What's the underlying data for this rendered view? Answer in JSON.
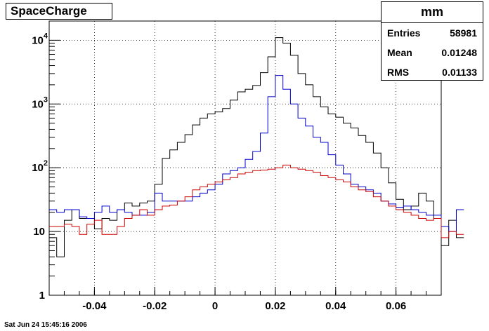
{
  "title": "SpaceCharge",
  "stats": {
    "title": "mm",
    "rows": [
      {
        "key": "Entries",
        "value": "58981"
      },
      {
        "key": "Mean",
        "value": "0.01248"
      },
      {
        "key": "RMS",
        "value": "0.01133"
      }
    ]
  },
  "timestamp": "Sat Jun 24 15:45:16 2006",
  "colors": {
    "total": "#000000",
    "blue": "#0000cc",
    "red": "#cc0000",
    "grid": "#000000"
  },
  "chart_data": {
    "type": "line",
    "xlim": [
      -0.055,
      0.075
    ],
    "ylim": [
      1,
      20000
    ],
    "log_y": true,
    "grid": true,
    "bin_width": 0.0025,
    "x_ticks": [
      -0.04,
      -0.02,
      0,
      0.02,
      0.04,
      0.06
    ],
    "x_tick_labels": [
      "-0.04",
      "-0.02",
      "0",
      "0.02",
      "0.04",
      "0.06"
    ],
    "y_ticks": [
      1,
      10,
      100,
      1000,
      10000
    ],
    "y_tick_labels": [
      {
        "base": "1",
        "exp": ""
      },
      {
        "base": "10",
        "exp": ""
      },
      {
        "base": "10",
        "exp": "2"
      },
      {
        "base": "10",
        "exp": "3"
      },
      {
        "base": "10",
        "exp": "4"
      }
    ],
    "series": [
      {
        "key": "total",
        "values": [
          8,
          4,
          15,
          22,
          16,
          16,
          11,
          16,
          15,
          22,
          28,
          25,
          28,
          30,
          55,
          140,
          190,
          250,
          330,
          470,
          600,
          700,
          750,
          850,
          1150,
          1550,
          1700,
          1950,
          3100,
          5500,
          11000,
          9000,
          5800,
          3000,
          2000,
          1300,
          900,
          700,
          620,
          500,
          420,
          320,
          250,
          170,
          100,
          58,
          32,
          22,
          25,
          40,
          30,
          16,
          6,
          15,
          8
        ]
      },
      {
        "key": "blue",
        "values": [
          22,
          20,
          22,
          22,
          17,
          16,
          20,
          25,
          20,
          22,
          20,
          18,
          18,
          20,
          40,
          30,
          30,
          30,
          30,
          35,
          40,
          45,
          55,
          80,
          90,
          100,
          135,
          180,
          350,
          1300,
          2800,
          1700,
          1000,
          600,
          450,
          300,
          250,
          160,
          110,
          80,
          55,
          50,
          45,
          40,
          30,
          27,
          24,
          25,
          22,
          20,
          18,
          18,
          12,
          10,
          22
        ]
      },
      {
        "key": "red",
        "values": [
          12,
          12,
          13,
          12,
          9,
          13,
          15,
          9,
          9,
          12,
          16,
          18,
          22,
          18,
          22,
          25,
          26,
          30,
          35,
          45,
          50,
          55,
          60,
          65,
          70,
          80,
          85,
          90,
          92,
          95,
          100,
          110,
          100,
          95,
          90,
          85,
          75,
          70,
          65,
          60,
          50,
          45,
          42,
          35,
          30,
          25,
          22,
          20,
          18,
          16,
          15,
          16,
          8,
          10,
          9
        ]
      }
    ]
  }
}
